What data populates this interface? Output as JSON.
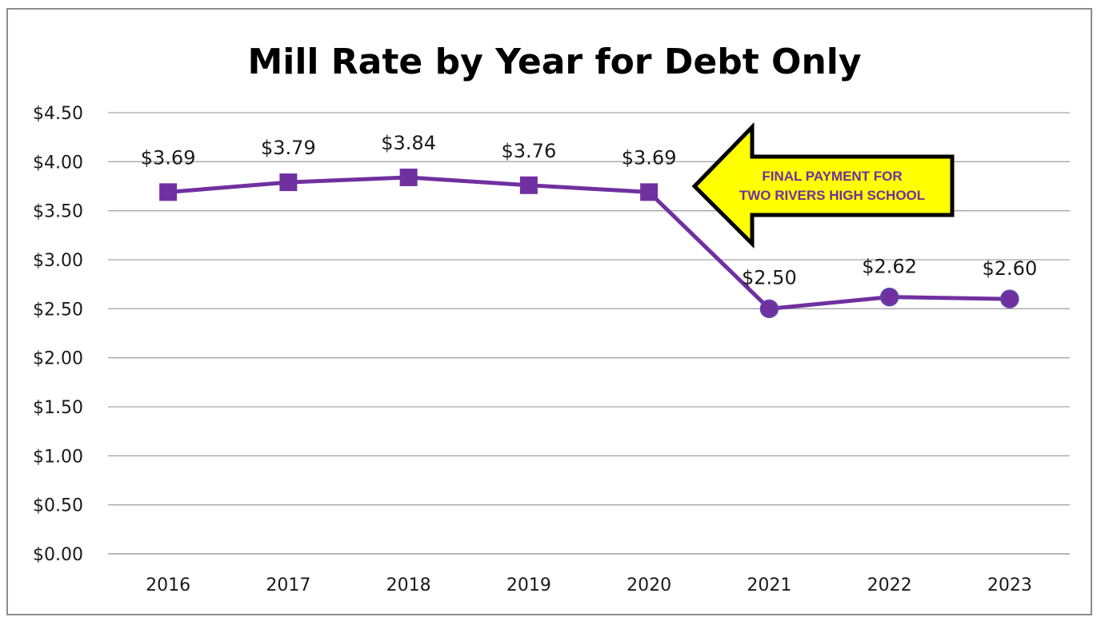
{
  "chart_data": {
    "type": "line",
    "title": "Mill Rate by Year for Debt Only",
    "xlabel": "",
    "ylabel": "",
    "categories": [
      "2016",
      "2017",
      "2018",
      "2019",
      "2020",
      "2021",
      "2022",
      "2023"
    ],
    "series": [
      {
        "values": [
          3.69,
          3.79,
          3.84,
          3.76,
          3.69,
          2.5,
          2.62,
          2.6
        ],
        "data_labels": [
          "$3.69",
          "$3.79",
          "$3.84",
          "$3.76",
          "$3.69",
          "$2.50",
          "$2.62",
          "$2.60"
        ],
        "markers": [
          "square",
          "square",
          "square",
          "square",
          "square",
          "circle",
          "circle",
          "circle"
        ],
        "color": "#7030a0"
      }
    ],
    "ylim": [
      0,
      4.5
    ],
    "yticks": [
      0,
      0.5,
      1.0,
      1.5,
      2.0,
      2.5,
      3.0,
      3.5,
      4.0,
      4.5
    ],
    "ytick_labels": [
      "$0.00",
      "$0.50",
      "$1.00",
      "$1.50",
      "$2.00",
      "$2.50",
      "$3.00",
      "$3.50",
      "$4.00",
      "$4.50"
    ],
    "grid": true,
    "legend": "none",
    "annotation": {
      "lines": [
        "FINAL PAYMENT FOR",
        "TWO RIVERS HIGH SCHOOL"
      ],
      "shape": "left-arrow",
      "fill": "#ffff00",
      "text_color": "#7030a0",
      "outline": "#000000"
    }
  }
}
